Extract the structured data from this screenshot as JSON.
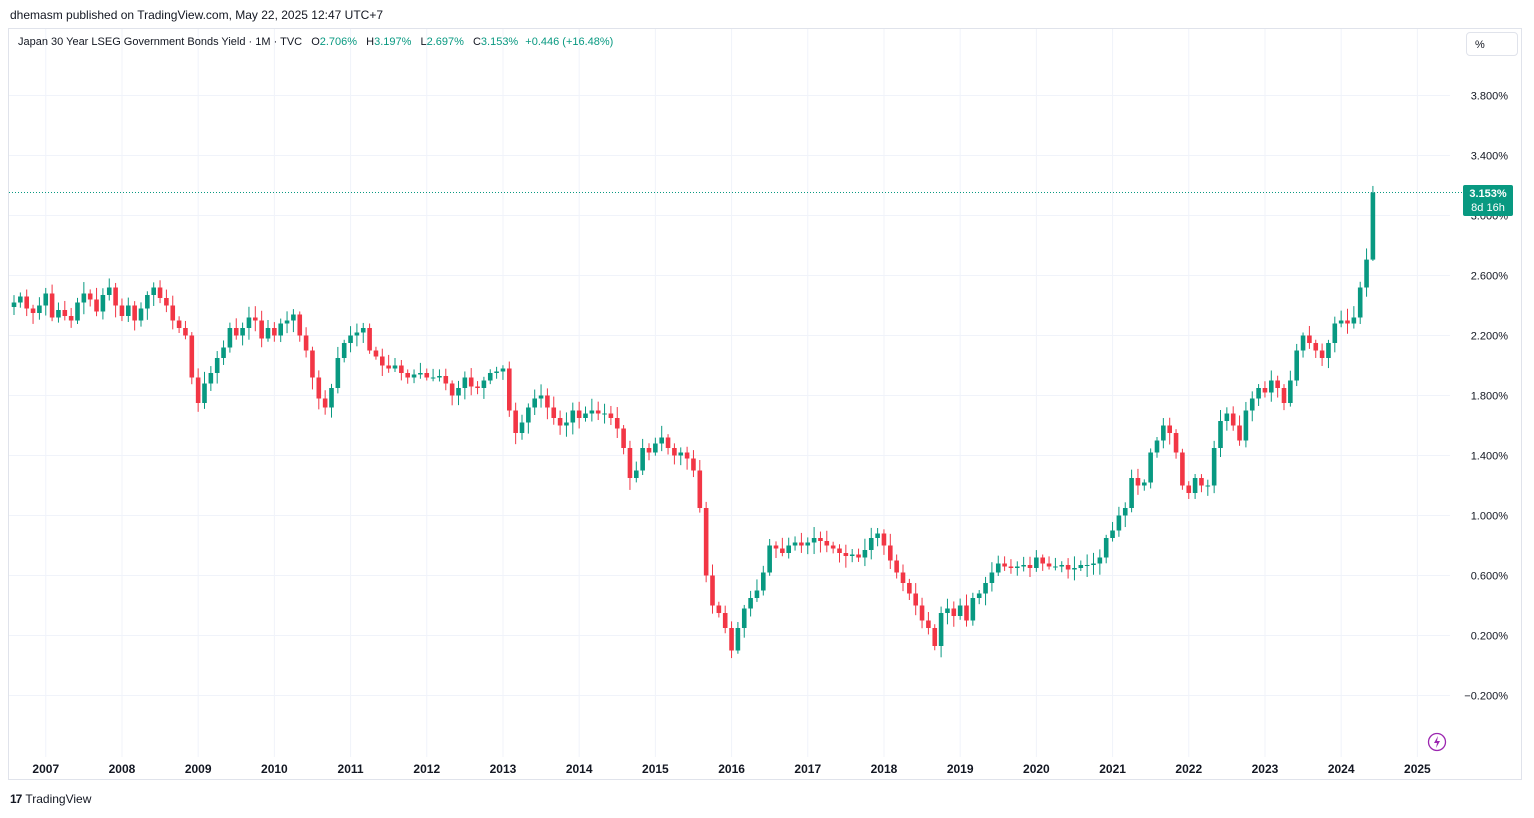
{
  "publisher": "dhemasm published on TradingView.com, May 22, 2025 12:47 UTC+7",
  "legend": {
    "symbol": "Japan 30 Year LSEG Government Bonds Yield · 1M · TVC",
    "o_label": "O",
    "o_value": "2.706%",
    "h_label": "H",
    "h_value": "3.197%",
    "l_label": "L",
    "l_value": "2.697%",
    "c_label": "C",
    "c_value": "3.153%",
    "change": "+0.446 (+16.48%)"
  },
  "unit_button": "%",
  "price_badge": {
    "price": "3.153%",
    "countdown": "8d 16h",
    "color": "#089981"
  },
  "footer": {
    "brand": "TradingView",
    "logo_text": "17"
  },
  "colors": {
    "up": "#089981",
    "down": "#f23645",
    "grid": "#f0f3fa",
    "axis_text": "#131722"
  },
  "chart_data": {
    "type": "candlestick",
    "title": "Japan 30 Year LSEG Government Bonds Yield",
    "interval": "1M",
    "ylabel": "%",
    "ylim": [
      -0.45,
      4.2
    ],
    "y_ticks": [
      "3.800%",
      "3.400%",
      "3.000%",
      "2.600%",
      "2.200%",
      "1.800%",
      "1.400%",
      "1.000%",
      "0.600%",
      "0.200%",
      "−0.200%"
    ],
    "y_tick_values": [
      3.8,
      3.4,
      3.0,
      2.6,
      2.2,
      1.8,
      1.4,
      1.0,
      0.6,
      0.2,
      -0.2
    ],
    "x_ticks": [
      "2007",
      "2008",
      "2009",
      "2010",
      "2011",
      "2012",
      "2013",
      "2014",
      "2015",
      "2016",
      "2017",
      "2018",
      "2019",
      "2020",
      "2021",
      "2022",
      "2023",
      "2024",
      "2025"
    ],
    "x_tick_years": [
      2007,
      2008,
      2009,
      2010,
      2011,
      2012,
      2013,
      2014,
      2015,
      2016,
      2017,
      2018,
      2019,
      2020,
      2021,
      2022,
      2023,
      2024,
      2025
    ],
    "last_price": 3.153,
    "start": "2006-08",
    "close": [
      2.42,
      2.46,
      2.38,
      2.35,
      2.4,
      2.48,
      2.32,
      2.37,
      2.33,
      2.3,
      2.42,
      2.48,
      2.44,
      2.36,
      2.47,
      2.52,
      2.4,
      2.33,
      2.4,
      2.3,
      2.38,
      2.47,
      2.52,
      2.45,
      2.4,
      2.3,
      2.25,
      2.2,
      1.92,
      1.75,
      1.88,
      1.95,
      2.05,
      2.12,
      2.25,
      2.2,
      2.25,
      2.32,
      2.3,
      2.18,
      2.25,
      2.2,
      2.28,
      2.3,
      2.34,
      2.2,
      2.1,
      1.92,
      1.78,
      1.72,
      1.85,
      2.05,
      2.15,
      2.2,
      2.22,
      2.25,
      2.1,
      2.06,
      2.0,
      1.98,
      2.0,
      1.95,
      1.92,
      1.94,
      1.95,
      1.92,
      1.92,
      1.93,
      1.88,
      1.8,
      1.85,
      1.92,
      1.86,
      1.85,
      1.9,
      1.95,
      1.96,
      1.98,
      1.7,
      1.55,
      1.62,
      1.72,
      1.78,
      1.8,
      1.72,
      1.65,
      1.6,
      1.62,
      1.7,
      1.65,
      1.68,
      1.7,
      1.68,
      1.68,
      1.65,
      1.58,
      1.45,
      1.25,
      1.3,
      1.45,
      1.42,
      1.48,
      1.52,
      1.45,
      1.4,
      1.42,
      1.38,
      1.3,
      1.05,
      0.6,
      0.4,
      0.35,
      0.25,
      0.1,
      0.25,
      0.38,
      0.45,
      0.5,
      0.62,
      0.8,
      0.78,
      0.75,
      0.8,
      0.82,
      0.8,
      0.82,
      0.85,
      0.83,
      0.8,
      0.78,
      0.75,
      0.73,
      0.74,
      0.72,
      0.77,
      0.85,
      0.88,
      0.8,
      0.7,
      0.62,
      0.55,
      0.48,
      0.4,
      0.3,
      0.25,
      0.13,
      0.35,
      0.38,
      0.33,
      0.4,
      0.3,
      0.45,
      0.48,
      0.55,
      0.62,
      0.68,
      0.66,
      0.65,
      0.66,
      0.67,
      0.65,
      0.72,
      0.68,
      0.66,
      0.66,
      0.67,
      0.64,
      0.65,
      0.67,
      0.67,
      0.68,
      0.72,
      0.85,
      0.9,
      1.0,
      1.05,
      1.25,
      1.2,
      1.22,
      1.42,
      1.5,
      1.6,
      1.55,
      1.42,
      1.2,
      1.15,
      1.25,
      1.2,
      1.2,
      1.45,
      1.63,
      1.68,
      1.6,
      1.5,
      1.7,
      1.78,
      1.85,
      1.82,
      1.9,
      1.85,
      1.75,
      1.9,
      2.1,
      2.2,
      2.15,
      2.1,
      2.05,
      2.15,
      2.28,
      2.3,
      2.28,
      2.32,
      2.52,
      2.706,
      3.153
    ]
  }
}
